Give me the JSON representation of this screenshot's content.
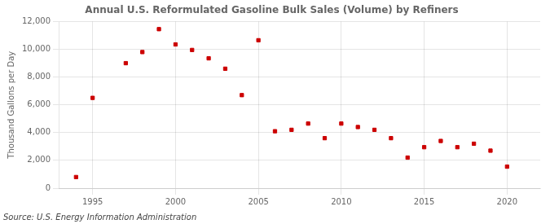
{
  "chart_data": {
    "type": "scatter",
    "title": "Annual U.S. Reformulated Gasoline Bulk Sales (Volume) by Refiners",
    "ylabel": "Thousand Gallons per Day",
    "source": "Source: U.S. Energy Information Administration",
    "x": [
      1994,
      1995,
      1997,
      1998,
      1999,
      2000,
      2001,
      2002,
      2003,
      2004,
      2005,
      2006,
      2007,
      2008,
      2009,
      2010,
      2011,
      2012,
      2013,
      2014,
      2015,
      2016,
      2017,
      2018,
      2019,
      2020
    ],
    "values": [
      800,
      6500,
      9000,
      9800,
      11450,
      10350,
      9950,
      9350,
      8600,
      6700,
      10650,
      4100,
      4200,
      4650,
      3600,
      4650,
      4400,
      4200,
      3600,
      2200,
      2950,
      3400,
      2950,
      3200,
      2700,
      1550
    ],
    "color": "#cc0000",
    "marker": "square",
    "xlim": [
      1993,
      2022
    ],
    "xticks": [
      1995,
      2000,
      2005,
      2010,
      2015,
      2020
    ],
    "ylim": [
      0,
      12000
    ],
    "yticks": [
      0,
      {
        "value": 2000,
        "label": "2,000"
      },
      {
        "value": 4000,
        "label": "4,000"
      },
      {
        "value": 6000,
        "label": "6,000"
      },
      {
        "value": 8000,
        "label": "8,000"
      },
      {
        "value": 10000,
        "label": "10,000"
      },
      {
        "value": 12000,
        "label": "12,000"
      }
    ],
    "grid": true
  }
}
